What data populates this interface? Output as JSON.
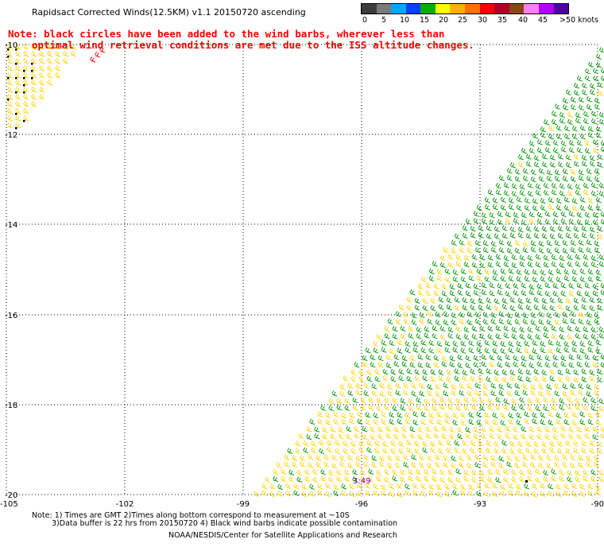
{
  "title": "Rapidsact Corrected Winds(12.5KM) v1.1 20150720 ascending",
  "note": {
    "line1": "Note: black circles have been added to the wind barbs, wherever less than",
    "line2": "optimal wind retrieval conditions are met due to the ISS altitude changes."
  },
  "legend": {
    "colors": [
      "#3c3c3c",
      "#7a7a7a",
      "#00a8ff",
      "#0040ff",
      "#00b000",
      "#ffff00",
      "#ffb000",
      "#ff7000",
      "#ff0000",
      "#b0002a",
      "#8b4513",
      "#ff80ff",
      "#b000ff",
      "#5000a0"
    ],
    "labels": [
      "0",
      "5",
      "10",
      "15",
      "20",
      "25",
      "30",
      "35",
      "40",
      "45",
      ">50 knots"
    ]
  },
  "map": {
    "lon_range": [
      -105,
      -90
    ],
    "lat_range": [
      -20,
      -10
    ],
    "lon_ticks": [
      "-105",
      "-102",
      "-99",
      "-96",
      "-93",
      "-90"
    ],
    "lat_ticks": [
      "-10",
      "-12",
      "-14",
      "-16",
      "-18",
      "-20"
    ],
    "time_label": "3:49",
    "barb_colors": {
      "green": "#009900",
      "yellow": "#ffd200",
      "red": "#ff0000",
      "black": "#000000"
    }
  },
  "footnotes": {
    "line1": "Note: 1) Times are GMT 2)Times along bottom correspond to measurement at ~10S",
    "line2": "3)Data buffer is 22 hrs from 20150720 4) Black wind barbs indicate possible contamination",
    "credit": "NOAA/NESDIS/Center for Satellite Applications and Research"
  }
}
